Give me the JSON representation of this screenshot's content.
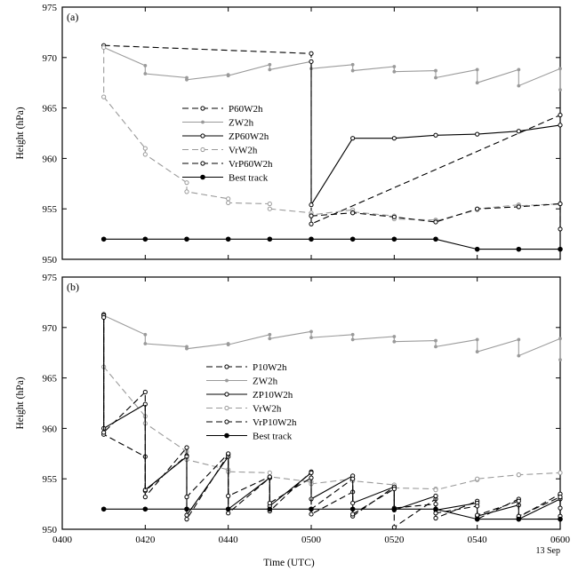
{
  "figure": {
    "xlabel": "Time (UTC)",
    "date_note": "13 Sep"
  },
  "chart_data": [
    {
      "type": "line",
      "panel_label": "(a)",
      "ylabel": "Height (hPa)",
      "ylim": [
        950,
        975
      ],
      "yticks": [
        950,
        955,
        960,
        965,
        970,
        975
      ],
      "xlim": [
        0,
        120
      ],
      "xticks": [
        0,
        20,
        40,
        60,
        80,
        100,
        120
      ],
      "xtick_labels": [
        "",
        "",
        "",
        "",
        "",
        "",
        ""
      ],
      "legend": [
        "P60W2h",
        "ZW2h",
        "ZP60W2h",
        "VrW2h",
        "VrP60W2h",
        "Best track"
      ],
      "series": [
        {
          "name": "ZW2h",
          "color": "#9a9a9a",
          "dash": "",
          "marker": "dot",
          "points": [
            [
              10,
              971.0
            ],
            [
              20,
              969.2
            ],
            [
              20,
              968.4
            ],
            [
              30,
              968.0
            ],
            [
              30,
              967.8
            ],
            [
              40,
              968.3
            ],
            [
              40,
              968.2
            ],
            [
              50,
              969.3
            ],
            [
              50,
              968.8
            ],
            [
              60,
              969.6
            ],
            [
              60,
              968.9
            ],
            [
              70,
              969.3
            ],
            [
              70,
              968.7
            ],
            [
              80,
              969.1
            ],
            [
              80,
              968.6
            ],
            [
              90,
              968.7
            ],
            [
              90,
              968.0
            ],
            [
              100,
              968.8
            ],
            [
              100,
              967.5
            ],
            [
              110,
              968.8
            ],
            [
              110,
              967.2
            ],
            [
              120,
              968.9
            ],
            [
              120,
              966.8
            ]
          ]
        },
        {
          "name": "P60W2h",
          "color": "#000000",
          "dash": "7 4",
          "marker": "open",
          "points": [
            [
              10,
              971.2
            ],
            [
              60,
              970.4
            ],
            [
              60,
              953.5
            ],
            [
              120,
              964.3
            ]
          ]
        },
        {
          "name": "ZP60W2h",
          "color": "#000000",
          "dash": "",
          "marker": "open",
          "points": [
            [
              60,
              969.6
            ],
            [
              60,
              955.4
            ],
            [
              70,
              962.0
            ],
            [
              80,
              962.0
            ],
            [
              90,
              962.3
            ],
            [
              100,
              962.4
            ],
            [
              110,
              962.7
            ],
            [
              120,
              963.3
            ]
          ]
        },
        {
          "name": "VrW2h",
          "color": "#9a9a9a",
          "dash": "7 4",
          "marker": "open",
          "points": [
            [
              10,
              971.0
            ],
            [
              10,
              966.1
            ],
            [
              20,
              961.0
            ],
            [
              20,
              960.4
            ],
            [
              30,
              957.6
            ],
            [
              30,
              956.7
            ],
            [
              40,
              956.0
            ],
            [
              40,
              955.6
            ],
            [
              50,
              955.5
            ],
            [
              50,
              955.0
            ],
            [
              60,
              954.6
            ],
            [
              60,
              954.4
            ],
            [
              70,
              954.9
            ],
            [
              70,
              954.7
            ],
            [
              80,
              954.3
            ],
            [
              80,
              954.0
            ],
            [
              90,
              953.9
            ],
            [
              90,
              953.8
            ],
            [
              100,
              954.9
            ],
            [
              100,
              955.0
            ],
            [
              110,
              955.4
            ],
            [
              110,
              955.3
            ],
            [
              120,
              955.5
            ]
          ]
        },
        {
          "name": "VrP60W2h",
          "color": "#000000",
          "dash": "7 4",
          "marker": "open",
          "points": [
            [
              60,
              954.3
            ],
            [
              70,
              954.6
            ],
            [
              80,
              954.2
            ],
            [
              90,
              953.7
            ],
            [
              100,
              955.0
            ],
            [
              110,
              955.2
            ],
            [
              120,
              955.5
            ],
            [
              120,
              953.0
            ]
          ]
        },
        {
          "name": "Best track",
          "color": "#000000",
          "dash": "",
          "marker": "filled",
          "points": [
            [
              10,
              952
            ],
            [
              20,
              952
            ],
            [
              30,
              952
            ],
            [
              40,
              952
            ],
            [
              50,
              952
            ],
            [
              60,
              952
            ],
            [
              70,
              952
            ],
            [
              80,
              952
            ],
            [
              90,
              952
            ],
            [
              100,
              951
            ],
            [
              110,
              951
            ],
            [
              120,
              951
            ]
          ]
        }
      ]
    },
    {
      "type": "line",
      "panel_label": "(b)",
      "ylabel": "Height (hPa)",
      "ylim": [
        950,
        975
      ],
      "yticks": [
        950,
        955,
        960,
        965,
        970,
        975
      ],
      "xlim": [
        0,
        120
      ],
      "xticks": [
        0,
        20,
        40,
        60,
        80,
        100,
        120
      ],
      "xtick_labels": [
        "0400",
        "0420",
        "0440",
        "0500",
        "0520",
        "0540",
        "0600"
      ],
      "legend": [
        "P10W2h",
        "ZW2h",
        "ZP10W2h",
        "VrW2h",
        "VrP10W2h",
        "Best track"
      ],
      "series": [
        {
          "name": "ZW2h",
          "color": "#9a9a9a",
          "dash": "",
          "marker": "dot",
          "points": [
            [
              10,
              971.2
            ],
            [
              20,
              969.3
            ],
            [
              20,
              968.4
            ],
            [
              30,
              968.1
            ],
            [
              30,
              967.9
            ],
            [
              40,
              968.4
            ],
            [
              40,
              968.3
            ],
            [
              50,
              969.3
            ],
            [
              50,
              968.9
            ],
            [
              60,
              969.6
            ],
            [
              60,
              969.0
            ],
            [
              70,
              969.3
            ],
            [
              70,
              968.8
            ],
            [
              80,
              969.1
            ],
            [
              80,
              968.6
            ],
            [
              90,
              968.7
            ],
            [
              90,
              968.1
            ],
            [
              100,
              968.8
            ],
            [
              100,
              967.6
            ],
            [
              110,
              968.8
            ],
            [
              110,
              967.2
            ],
            [
              120,
              968.9
            ],
            [
              120,
              966.8
            ]
          ]
        },
        {
          "name": "VrW2h",
          "color": "#9a9a9a",
          "dash": "7 4",
          "marker": "open",
          "points": [
            [
              10,
              971.0
            ],
            [
              10,
              966.1
            ],
            [
              20,
              961.2
            ],
            [
              20,
              960.5
            ],
            [
              30,
              957.7
            ],
            [
              30,
              956.9
            ],
            [
              40,
              955.9
            ],
            [
              40,
              955.7
            ],
            [
              50,
              955.6
            ],
            [
              50,
              955.2
            ],
            [
              60,
              954.7
            ],
            [
              60,
              954.5
            ],
            [
              70,
              955.0
            ],
            [
              70,
              954.8
            ],
            [
              80,
              954.4
            ],
            [
              80,
              954.1
            ],
            [
              90,
              954.0
            ],
            [
              90,
              953.9
            ],
            [
              100,
              954.9
            ],
            [
              100,
              955.0
            ],
            [
              110,
              955.4
            ],
            [
              110,
              955.4
            ],
            [
              120,
              955.6
            ]
          ]
        },
        {
          "name": "P10W2h",
          "color": "#000000",
          "dash": "7 4",
          "marker": "open",
          "points": [
            [
              10,
              971.3
            ],
            [
              10,
              959.4
            ],
            [
              20,
              957.2
            ],
            [
              20,
              953.8
            ],
            [
              30,
              957.3
            ],
            [
              30,
              951.0
            ],
            [
              40,
              957.4
            ],
            [
              40,
              951.6
            ],
            [
              50,
              955.1
            ],
            [
              50,
              951.8
            ],
            [
              60,
              955.7
            ],
            [
              60,
              951.5
            ],
            [
              70,
              953.7
            ],
            [
              70,
              951.3
            ],
            [
              80,
              954.2
            ],
            [
              80,
              950.2
            ],
            [
              90,
              953.0
            ],
            [
              90,
              951.1
            ],
            [
              100,
              952.8
            ],
            [
              100,
              951.0
            ],
            [
              110,
              953.0
            ],
            [
              110,
              951.2
            ],
            [
              120,
              953.5
            ],
            [
              120,
              951.0
            ]
          ]
        },
        {
          "name": "ZP10W2h",
          "color": "#000000",
          "dash": "",
          "marker": "open",
          "points": [
            [
              10,
              971.2
            ],
            [
              10,
              960.0
            ],
            [
              20,
              962.4
            ],
            [
              20,
              953.9
            ],
            [
              30,
              957.2
            ],
            [
              30,
              951.4
            ],
            [
              40,
              957.2
            ],
            [
              40,
              952.0
            ],
            [
              50,
              955.1
            ],
            [
              50,
              952.3
            ],
            [
              60,
              955.6
            ],
            [
              60,
              953.0
            ],
            [
              70,
              955.3
            ],
            [
              70,
              952.6
            ],
            [
              80,
              954.2
            ],
            [
              80,
              951.9
            ],
            [
              90,
              953.3
            ],
            [
              90,
              951.9
            ],
            [
              100,
              952.6
            ],
            [
              100,
              951.3
            ],
            [
              110,
              952.4
            ],
            [
              110,
              951.0
            ],
            [
              120,
              953.0
            ],
            [
              120,
              951.3
            ]
          ]
        },
        {
          "name": "VrP10W2h",
          "color": "#000000",
          "dash": "7 4",
          "marker": "open",
          "points": [
            [
              10,
              971.0
            ],
            [
              10,
              959.6
            ],
            [
              20,
              963.6
            ],
            [
              20,
              953.2
            ],
            [
              30,
              958.1
            ],
            [
              30,
              953.2
            ],
            [
              40,
              957.5
            ],
            [
              40,
              953.3
            ],
            [
              50,
              955.2
            ],
            [
              50,
              952.6
            ],
            [
              60,
              955.1
            ],
            [
              60,
              952.0
            ],
            [
              70,
              955.0
            ],
            [
              70,
              951.5
            ],
            [
              80,
              954.0
            ],
            [
              80,
              952.1
            ],
            [
              90,
              952.5
            ],
            [
              90,
              951.6
            ],
            [
              100,
              952.3
            ],
            [
              100,
              951.4
            ],
            [
              110,
              952.8
            ],
            [
              110,
              951.3
            ],
            [
              120,
              953.2
            ],
            [
              120,
              952.1
            ]
          ]
        },
        {
          "name": "Best track",
          "color": "#000000",
          "dash": "",
          "marker": "filled",
          "points": [
            [
              10,
              952
            ],
            [
              20,
              952
            ],
            [
              30,
              952
            ],
            [
              40,
              952
            ],
            [
              50,
              952
            ],
            [
              60,
              952
            ],
            [
              70,
              952
            ],
            [
              80,
              952
            ],
            [
              90,
              952
            ],
            [
              100,
              951
            ],
            [
              110,
              951
            ],
            [
              120,
              951
            ]
          ]
        }
      ]
    }
  ]
}
